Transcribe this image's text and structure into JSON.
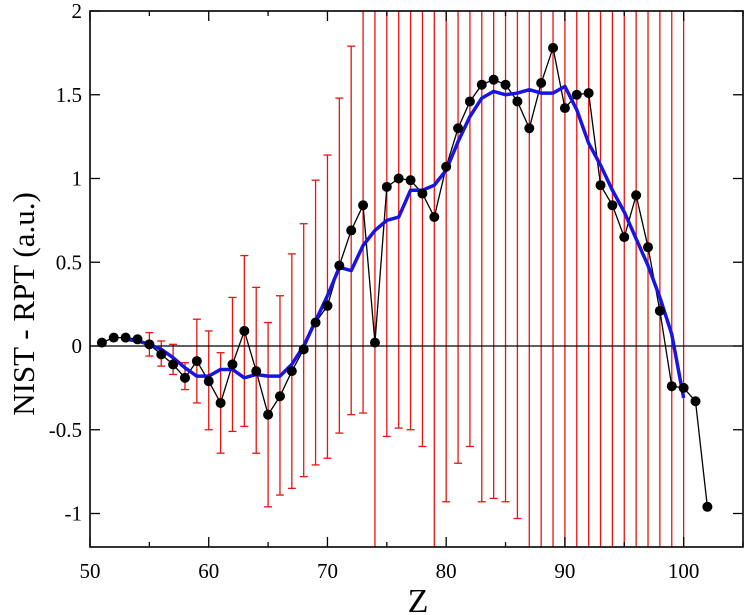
{
  "chart_data": {
    "type": "line",
    "title": "",
    "xlabel": "Z",
    "ylabel": "NIST - RPT (a.u.)",
    "xlim": [
      50,
      105
    ],
    "ylim": [
      -1.2,
      2
    ],
    "xticks": [
      50,
      60,
      70,
      80,
      90,
      100
    ],
    "yticks": [
      -1,
      -0.5,
      0,
      0.5,
      1,
      1.5,
      2
    ],
    "xtick_labels": [
      "50",
      "60",
      "70",
      "80",
      "90",
      "100"
    ],
    "ytick_labels": [
      "-1",
      "-0.5",
      "0",
      "0.5",
      "1",
      "1.5",
      "2"
    ],
    "grid": false,
    "zero_line": true,
    "colors": {
      "points": "#000000",
      "error_bars": "#e8150f",
      "fit": "#1a14e0",
      "axes": "#000000"
    },
    "series": [
      {
        "kind": "points-with-error-bars",
        "x": [
          51,
          52,
          53,
          54,
          55,
          56,
          57,
          58,
          59,
          60,
          61,
          62,
          63,
          64,
          65,
          66,
          67,
          68,
          69,
          70,
          71,
          72,
          73,
          74,
          75,
          76,
          77,
          78,
          79,
          80,
          81,
          82,
          83,
          84,
          85,
          86,
          87,
          88,
          89,
          90,
          91,
          92,
          93,
          94,
          95,
          96,
          97,
          98,
          99,
          100,
          101,
          102
        ],
        "y": [
          0.02,
          0.05,
          0.05,
          0.04,
          0.01,
          -0.05,
          -0.11,
          -0.19,
          -0.09,
          -0.21,
          -0.34,
          -0.11,
          0.09,
          -0.15,
          -0.41,
          -0.3,
          -0.15,
          -0.02,
          0.14,
          0.24,
          0.48,
          0.69,
          0.84,
          0.02,
          0.95,
          1.0,
          0.99,
          0.91,
          0.77,
          1.07,
          1.3,
          1.46,
          1.56,
          1.59,
          1.56,
          1.46,
          1.3,
          1.57,
          1.78,
          1.42,
          1.5,
          1.51,
          0.96,
          0.84,
          0.65,
          0.9,
          0.59,
          0.21,
          -0.24,
          -0.25,
          -0.33,
          -0.96
        ],
        "err_low": [
          null,
          null,
          null,
          null,
          -0.06,
          -0.12,
          -0.17,
          -0.26,
          -0.34,
          -0.5,
          -0.64,
          -0.51,
          -0.48,
          -0.64,
          -0.96,
          -0.89,
          -0.85,
          -0.78,
          -0.71,
          -0.67,
          -0.52,
          -0.41,
          -0.4,
          -1.2,
          -0.54,
          -0.49,
          -0.5,
          -0.6,
          -1.2,
          -0.93,
          -0.7,
          -0.6,
          -0.93,
          -0.91,
          -0.93,
          -1.03,
          -1.2,
          -1.2,
          -1.2,
          -1.2,
          -1.2,
          -1.2,
          -1.2,
          -1.2,
          -1.2,
          -1.2,
          -1.2,
          -1.2,
          -1.2,
          -1.2,
          null,
          null
        ],
        "err_high": [
          null,
          null,
          null,
          null,
          0.08,
          0.03,
          0.01,
          -0.1,
          0.16,
          0.09,
          -0.04,
          0.29,
          0.54,
          0.35,
          0.14,
          0.3,
          0.55,
          0.73,
          0.99,
          1.14,
          1.48,
          1.79,
          2,
          2,
          2,
          2,
          2,
          2,
          2,
          2,
          2,
          2,
          2,
          2,
          2,
          2,
          2,
          2,
          2,
          2,
          2,
          2,
          2,
          2,
          2,
          2,
          2,
          2,
          2,
          2,
          null,
          null
        ]
      },
      {
        "kind": "smooth-line",
        "x": [
          53,
          54,
          55,
          56,
          57,
          58,
          59,
          60,
          61,
          62,
          63,
          64,
          65,
          66,
          67,
          68,
          69,
          70,
          71,
          72,
          73,
          74,
          75,
          76,
          77,
          78,
          79,
          80,
          81,
          82,
          83,
          84,
          85,
          86,
          87,
          88,
          89,
          90,
          91,
          92,
          93,
          94,
          95,
          96,
          97,
          98,
          99,
          100
        ],
        "y": [
          0.04,
          0.03,
          0.01,
          -0.02,
          -0.07,
          -0.13,
          -0.18,
          -0.18,
          -0.14,
          -0.14,
          -0.19,
          -0.17,
          -0.18,
          -0.18,
          -0.11,
          0.0,
          0.15,
          0.3,
          0.47,
          0.45,
          0.6,
          0.69,
          0.75,
          0.77,
          0.93,
          0.93,
          0.96,
          1.05,
          1.22,
          1.37,
          1.48,
          1.52,
          1.5,
          1.51,
          1.53,
          1.51,
          1.51,
          1.55,
          1.41,
          1.21,
          1.08,
          0.93,
          0.8,
          0.64,
          0.48,
          0.29,
          0.07,
          -0.31
        ]
      }
    ]
  }
}
